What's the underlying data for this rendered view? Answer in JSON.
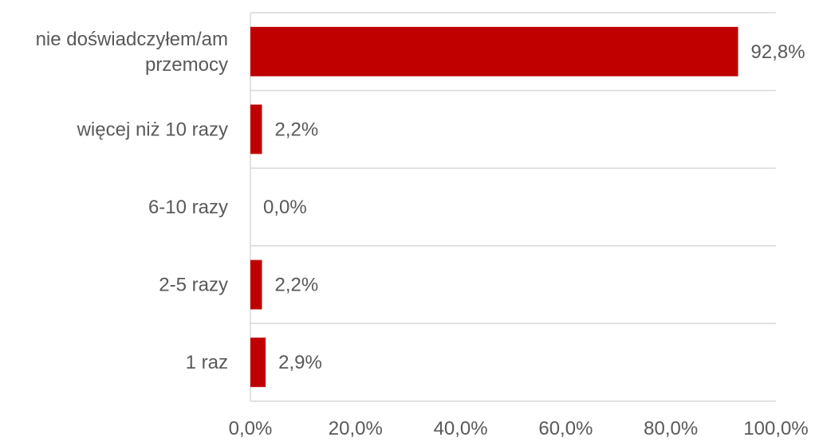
{
  "chart_data": {
    "type": "bar",
    "orientation": "horizontal",
    "categories": [
      "nie doświadczyłem/am przemocy",
      "więcej niż 10 razy",
      "6-10 razy",
      "2-5 razy",
      "1 raz"
    ],
    "category_lines": [
      [
        "nie doświadczyłem/am",
        "przemocy"
      ],
      [
        "więcej niż 10 razy"
      ],
      [
        "6-10 razy"
      ],
      [
        "2-5 razy"
      ],
      [
        "1 raz"
      ]
    ],
    "values": [
      92.8,
      2.2,
      0.0,
      2.2,
      2.9
    ],
    "data_labels": [
      "92,8%",
      "2,2%",
      "0,0%",
      "2,2%",
      "2,9%"
    ],
    "xlim": [
      0,
      100
    ],
    "ticks": [
      "0,0%",
      "20,0%",
      "40,0%",
      "60,0%",
      "80,0%",
      "100,0%"
    ],
    "title": "",
    "xlabel": "",
    "ylabel": "",
    "grid": true,
    "bar_color": "#C00000",
    "grid_color": "#D9D9D9",
    "text_color": "#595959"
  }
}
